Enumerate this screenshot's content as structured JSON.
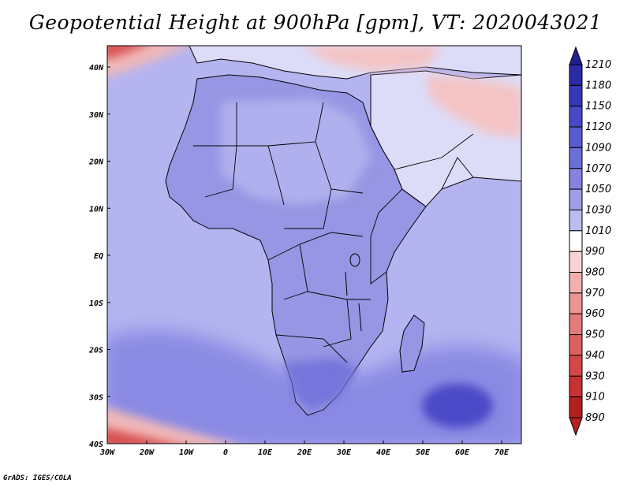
{
  "title": "Geopotential Height at 900hPa [gpm], VT: 2020043021",
  "footer": "GrADS: IGES/COLA",
  "map": {
    "lat_labels": [
      "40N",
      "30N",
      "20N",
      "10N",
      "EQ",
      "10S",
      "20S",
      "30S",
      "40S"
    ],
    "lon_labels": [
      "30W",
      "20W",
      "10W",
      "0",
      "10E",
      "20E",
      "30E",
      "40E",
      "50E",
      "60E",
      "70E"
    ],
    "lat_range": [
      -40,
      45
    ],
    "lon_range": [
      -30,
      75
    ]
  },
  "colorbar": {
    "levels": [
      "1210",
      "1180",
      "1150",
      "1120",
      "1090",
      "1070",
      "1050",
      "1030",
      "1010",
      "990",
      "980",
      "970",
      "960",
      "950",
      "940",
      "930",
      "910",
      "890"
    ],
    "colors": [
      "#22208c",
      "#2c2aa6",
      "#3936b8",
      "#4a48c6",
      "#5b5ad0",
      "#6e6ed8",
      "#8483e0",
      "#9d9de8",
      "#bcbcf0",
      "#ffffff",
      "#f8d4d4",
      "#f2b0b0",
      "#ec9494",
      "#e47a7a",
      "#dc6060",
      "#d44848",
      "#c83232",
      "#b42020"
    ]
  },
  "fields": {
    "ocean_base": "#b4b4f0",
    "land_base": "#9696e4",
    "sahara": "#b0b0ee",
    "mideast": "#dcdcf8",
    "warm_patch": "#f4c4c4",
    "south_low": "#7474dc",
    "deep_low": "#4c4ac8",
    "south_ocean": "#8a8ae4",
    "ring_outer": "#f0b8b8",
    "ring_inner": "#d85050"
  }
}
